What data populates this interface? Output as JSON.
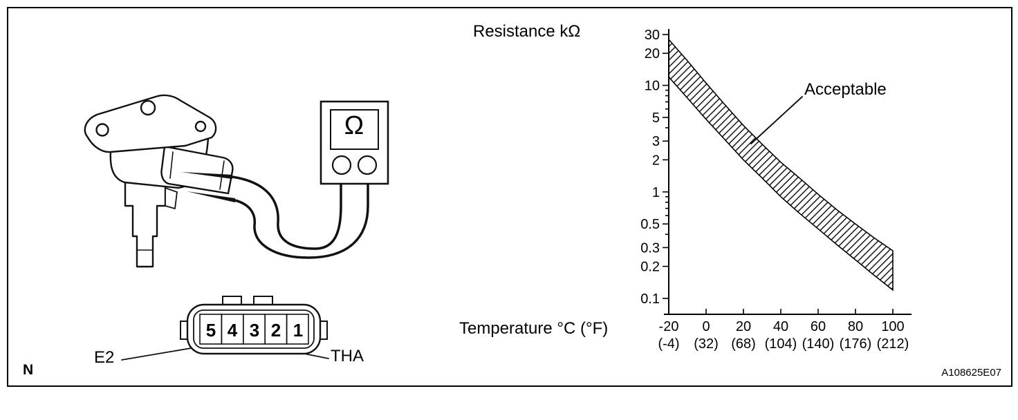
{
  "figure": {
    "corner_mark": "N",
    "code": "A108625E07"
  },
  "meter": {
    "symbol": "Ω"
  },
  "connector": {
    "pins": [
      "5",
      "4",
      "3",
      "2",
      "1"
    ],
    "labels": {
      "e2": "E2",
      "tha": "THA"
    }
  },
  "chart_data": {
    "type": "area",
    "title": "",
    "ylabel": "Resistance kΩ",
    "xlabel": "Temperature °C (°F)",
    "annotation": "Acceptable",
    "yscale": "log",
    "ylim": [
      0.1,
      30
    ],
    "xlim": [
      -20,
      100
    ],
    "grid": false,
    "y_ticks": [
      30,
      20,
      10,
      5,
      3,
      2,
      1,
      0.5,
      0.3,
      0.2,
      0.1
    ],
    "y_minor_ticks": [
      0.4,
      0.6,
      0.7,
      0.8,
      0.9,
      4,
      6,
      7,
      8,
      9
    ],
    "x_ticks_c": [
      -20,
      0,
      20,
      40,
      60,
      80,
      100
    ],
    "x_ticks_f": [
      "(-4)",
      "(32)",
      "(68)",
      "(104)",
      "(140)",
      "(176)",
      "(212)"
    ],
    "band": {
      "name": "Acceptable",
      "temps_c": [
        -20,
        -10,
        0,
        10,
        20,
        30,
        40,
        50,
        60,
        70,
        80,
        90,
        100
      ],
      "upper_kohm": [
        27,
        17,
        10.5,
        6.6,
        4.2,
        2.8,
        1.9,
        1.35,
        0.95,
        0.68,
        0.5,
        0.37,
        0.28
      ],
      "lower_kohm": [
        12,
        7.6,
        4.8,
        3.1,
        2.0,
        1.35,
        0.9,
        0.63,
        0.45,
        0.32,
        0.23,
        0.165,
        0.12
      ]
    }
  }
}
